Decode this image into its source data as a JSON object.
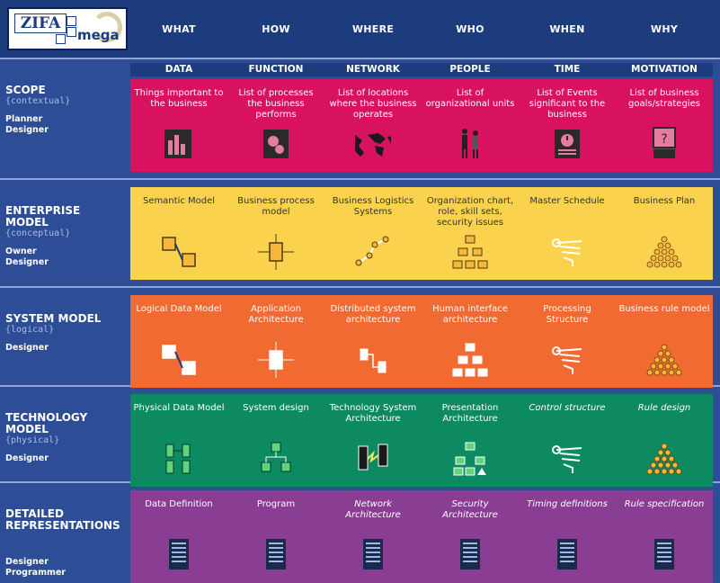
{
  "logo": {
    "zifa": "ZIFA",
    "mega": "mega"
  },
  "interrogatives": [
    "WHAT",
    "HOW",
    "WHERE",
    "WHO",
    "WHEN",
    "WHY"
  ],
  "columns": [
    "DATA",
    "FUNCTION",
    "NETWORK",
    "PEOPLE",
    "TIME",
    "MOTIVATION"
  ],
  "rows": [
    {
      "title_lines": [
        "SCOPE"
      ],
      "subtitle": "{contextual}",
      "roles": [
        "Planner",
        "Designer"
      ],
      "color": "#d8125e",
      "cells": [
        "Things important to the business",
        "List of processes the business performs",
        "List of locations where the business operates",
        "List of organizational units",
        "List of Events significant to the business",
        "List of business goals/strategies"
      ],
      "icons": [
        "bar-chart-icon",
        "gears-icon",
        "world-map-icon",
        "people-icon",
        "clock-calendar-icon",
        "question-document-icon"
      ]
    },
    {
      "title_lines": [
        "ENTERPRISE",
        "MODEL"
      ],
      "subtitle": "{conceptual}",
      "roles": [
        "Owner",
        "Designer"
      ],
      "color": "#fbd24e",
      "cells": [
        "Semantic Model",
        "Business process model",
        "Business Logistics Systems",
        "Organization chart, role, skill sets, security issues",
        "Master Schedule",
        "Business Plan"
      ],
      "icons": [
        "entity-link-icon",
        "process-box-icon",
        "network-nodes-icon",
        "org-chart-icon",
        "timeline-icon",
        "goal-pyramid-icon"
      ]
    },
    {
      "title_lines": [
        "SYSTEM MODEL"
      ],
      "subtitle": "{logical}",
      "roles": [
        "Designer"
      ],
      "color": "#f06a32",
      "cells": [
        "Logical Data Model",
        "Application Architecture",
        "Distributed system architecture",
        "Human interface architecture",
        "Processing Structure",
        "Business rule model"
      ],
      "icons": [
        "entity-link-icon",
        "process-box-icon",
        "distributed-nodes-icon",
        "org-chart-icon",
        "timeline-icon",
        "goal-pyramid-icon"
      ]
    },
    {
      "title_lines": [
        "TECHNOLOGY",
        "MODEL"
      ],
      "subtitle": "{physical}",
      "roles": [
        "Designer"
      ],
      "color": "#0d8a62",
      "cells": [
        "Physical Data Model",
        "System design",
        "Technology System Architecture",
        "Presentation Architecture",
        "Control structure",
        "Rule design"
      ],
      "italic": [
        false,
        false,
        false,
        false,
        true,
        true
      ],
      "icons": [
        "database-tables-icon",
        "flowchart-icon",
        "server-network-icon",
        "tree-diagram-icon",
        "timeline-icon",
        "goal-pyramid-icon"
      ]
    },
    {
      "title_lines": [
        "DETAILED",
        "REPRESENTATIONS"
      ],
      "subtitle": "",
      "roles": [
        "Designer",
        "Programmer"
      ],
      "color": "#8a3e93",
      "cells": [
        "Data Definition",
        "Program",
        "Network Architecture",
        "Security Architecture",
        "Timing definitions",
        "Rule specification"
      ],
      "italic": [
        false,
        false,
        true,
        true,
        true,
        true
      ],
      "icons": [
        "document-icon",
        "document-icon",
        "document-icon",
        "document-icon",
        "document-icon",
        "document-icon"
      ]
    }
  ]
}
